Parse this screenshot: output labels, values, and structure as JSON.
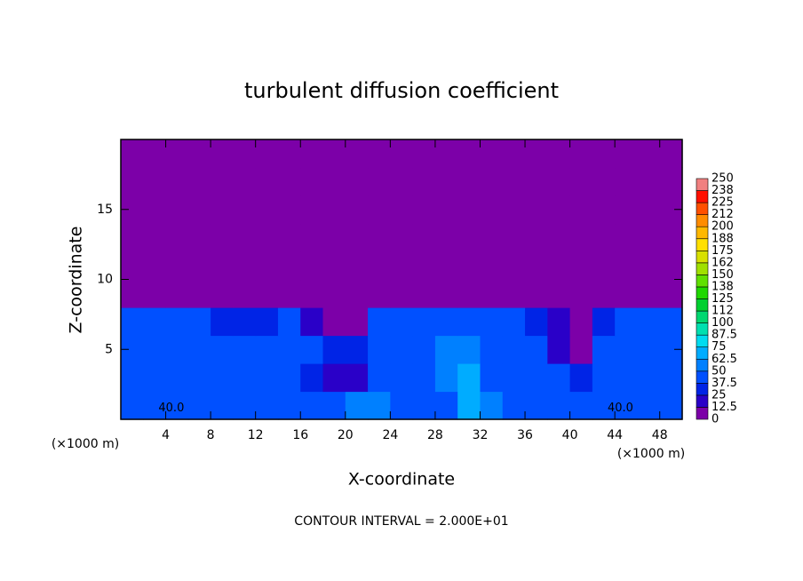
{
  "chart_data": {
    "type": "contour",
    "title": "turbulent diffusion coefficient",
    "xlabel": "X-coordinate",
    "ylabel": "Z-coordinate",
    "axis_unit": "(×1000 m)",
    "annotation": "CONTOUR INTERVAL = 2.000E+01",
    "xlim": [
      0,
      50
    ],
    "ylim": [
      0,
      20
    ],
    "xticks": [
      4,
      8,
      12,
      16,
      20,
      24,
      28,
      32,
      36,
      40,
      44,
      48
    ],
    "yticks": [
      5,
      10,
      15
    ],
    "levels": [
      0,
      12.5,
      25,
      37.5,
      50,
      62.5,
      75,
      87.5,
      100,
      {
        "value": 112.5,
        "label": "112"
      },
      125,
      {
        "value": 137.5,
        "label": "138"
      },
      150,
      {
        "value": 162.5,
        "label": "162"
      },
      175,
      {
        "value": 187.5,
        "label": "188"
      },
      200,
      {
        "value": 212.5,
        "label": "212"
      },
      225,
      {
        "value": 237.5,
        "label": "238"
      },
      250
    ],
    "colors": [
      "#7c00a8",
      "#2a00c8",
      "#0024e6",
      "#0050ff",
      "#0080ff",
      "#00acff",
      "#00dcf0",
      "#00e0b0",
      "#00d870",
      "#00d030",
      "#20d800",
      "#60e000",
      "#a0e000",
      "#d8e000",
      "#ffe000",
      "#ffb800",
      "#ff8c00",
      "#ff5000",
      "#ff1000",
      "#f08080"
    ],
    "contour_labels": [
      {
        "value": 40,
        "label": "40.0",
        "x": 4.5,
        "y": 0.8
      },
      {
        "value": 40,
        "label": "40.0",
        "x": 44.5,
        "y": 0.8
      }
    ],
    "z": [
      [
        40,
        42,
        40,
        38,
        45,
        40,
        40,
        38,
        40,
        45,
        50,
        60,
        40,
        40,
        45,
        70,
        55,
        40,
        40,
        45,
        42,
        40,
        45,
        40,
        40
      ],
      [
        40,
        40,
        42,
        40,
        38,
        40,
        45,
        40,
        30,
        20,
        20,
        40,
        45,
        40,
        60,
        70,
        45,
        40,
        45,
        40,
        35,
        40,
        40,
        42,
        40
      ],
      [
        40,
        42,
        40,
        45,
        40,
        38,
        40,
        40,
        42,
        35,
        25,
        40,
        40,
        45,
        55,
        60,
        40,
        40,
        40,
        20,
        10,
        40,
        40,
        45,
        40
      ],
      [
        38,
        40,
        40,
        40,
        30,
        25,
        30,
        40,
        20,
        5,
        10,
        40,
        40,
        40,
        45,
        40,
        40,
        40,
        35,
        15,
        5,
        35,
        40,
        40,
        38
      ],
      [
        10,
        5,
        5,
        2,
        0,
        0,
        0,
        0,
        0,
        0,
        0,
        0,
        5,
        10,
        10,
        8,
        5,
        2,
        0,
        0,
        0,
        0,
        5,
        10,
        5
      ],
      [
        0,
        0,
        0,
        0,
        0,
        0,
        0,
        0,
        0,
        0,
        0,
        0,
        0,
        0,
        0,
        0,
        0,
        0,
        0,
        0,
        0,
        0,
        0,
        0,
        0
      ],
      [
        0,
        0,
        0,
        0,
        0,
        0,
        0,
        0,
        0,
        0,
        0,
        0,
        0,
        0,
        0,
        0,
        0,
        0,
        0,
        0,
        0,
        0,
        0,
        0,
        0
      ],
      [
        0,
        0,
        0,
        0,
        0,
        0,
        0,
        0,
        0,
        0,
        0,
        0,
        0,
        0,
        0,
        0,
        0,
        0,
        0,
        0,
        0,
        0,
        0,
        0,
        0
      ],
      [
        0,
        0,
        0,
        0,
        0,
        0,
        0,
        0,
        0,
        0,
        0,
        0,
        0,
        0,
        0,
        0,
        0,
        0,
        0,
        0,
        0,
        0,
        0,
        0,
        0
      ],
      [
        0,
        0,
        0,
        0,
        0,
        0,
        0,
        0,
        0,
        0,
        0,
        0,
        0,
        0,
        0,
        0,
        0,
        0,
        0,
        0,
        0,
        0,
        0,
        0,
        0
      ]
    ]
  }
}
